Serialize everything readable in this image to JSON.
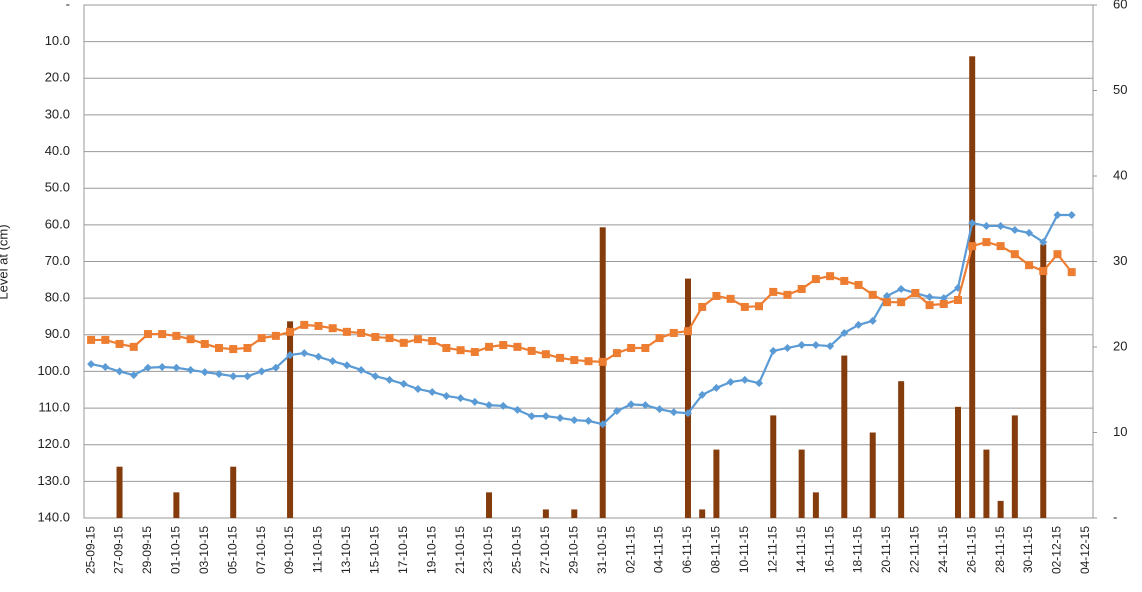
{
  "chart_data": {
    "type": "combo",
    "y_title": "Level at (cm)",
    "categories": [
      "25-09-15",
      null,
      "27-09-15",
      null,
      "29-09-15",
      null,
      "01-10-15",
      null,
      "03-10-15",
      null,
      "05-10-15",
      null,
      "07-10-15",
      null,
      "09-10-15",
      null,
      "11-10-15",
      null,
      "13-10-15",
      null,
      "15-10-15",
      null,
      "17-10-15",
      null,
      "19-10-15",
      null,
      "21-10-15",
      null,
      "23-10-15",
      null,
      "25-10-15",
      null,
      "27-10-15",
      null,
      "29-10-15",
      null,
      "31-10-15",
      null,
      "02-11-15",
      null,
      "04-11-15",
      null,
      "06-11-15",
      null,
      "08-11-15",
      null,
      "10-11-15",
      null,
      "12-11-15",
      null,
      "14-11-15",
      null,
      "16-11-15",
      null,
      "18-11-15",
      null,
      "20-11-15",
      null,
      "22-11-15",
      null,
      "24-11-15",
      null,
      "26-11-15",
      null,
      "28-11-15",
      null,
      "30-11-15",
      null,
      "02-12-15",
      null,
      "04-12-15"
    ],
    "series": [
      {
        "kind": "bar",
        "axis": "y2",
        "color": "#843c0c",
        "values": [
          null,
          null,
          6,
          null,
          null,
          null,
          3,
          null,
          null,
          null,
          6,
          null,
          null,
          null,
          23,
          null,
          null,
          null,
          null,
          null,
          null,
          null,
          null,
          null,
          null,
          null,
          null,
          null,
          3,
          null,
          null,
          null,
          1,
          null,
          1,
          null,
          34,
          null,
          null,
          null,
          null,
          null,
          28,
          1,
          8,
          null,
          null,
          null,
          12,
          null,
          8,
          3,
          null,
          19,
          null,
          10,
          null,
          16,
          null,
          null,
          null,
          13,
          54,
          8,
          2,
          12,
          null,
          32,
          null,
          null,
          null
        ]
      },
      {
        "kind": "line",
        "marker": "diamond",
        "color": "#5b9bd5",
        "values": [
          98.0,
          98.8,
          100.0,
          101.0,
          99.0,
          98.8,
          99.0,
          99.6,
          100.2,
          100.7,
          101.3,
          101.3,
          100.0,
          99.0,
          95.5,
          95.0,
          96.0,
          97.2,
          98.3,
          99.6,
          101.3,
          102.3,
          103.4,
          104.8,
          105.6,
          106.7,
          107.3,
          108.3,
          109.2,
          109.4,
          110.5,
          112.2,
          112.2,
          112.7,
          113.3,
          113.5,
          114.4,
          110.8,
          109.0,
          109.2,
          110.3,
          111.1,
          111.4,
          106.4,
          104.5,
          102.9,
          102.3,
          103.2,
          94.4,
          93.6,
          92.8,
          92.8,
          93.1,
          89.5,
          87.3,
          86.2,
          79.4,
          77.5,
          78.6,
          79.7,
          80.0,
          77.2,
          59.5,
          60.3,
          60.3,
          61.4,
          62.2,
          64.7,
          57.3,
          57.3,
          null
        ]
      },
      {
        "kind": "line",
        "marker": "square",
        "color": "#ed7d31",
        "values": [
          91.4,
          91.4,
          92.5,
          93.3,
          89.8,
          89.8,
          90.3,
          91.2,
          92.5,
          93.6,
          93.9,
          93.6,
          90.9,
          90.3,
          89.2,
          87.3,
          87.6,
          88.2,
          89.2,
          89.5,
          90.6,
          90.9,
          92.2,
          91.2,
          91.7,
          93.6,
          94.2,
          94.7,
          93.3,
          92.8,
          93.3,
          94.4,
          95.3,
          96.3,
          96.9,
          97.2,
          97.4,
          95.0,
          93.6,
          93.6,
          90.9,
          89.5,
          89.0,
          82.4,
          79.4,
          80.2,
          82.4,
          82.2,
          78.3,
          79.1,
          77.5,
          74.8,
          74.0,
          75.3,
          76.4,
          79.1,
          81.1,
          81.1,
          78.6,
          81.9,
          81.6,
          80.5,
          65.8,
          64.7,
          65.8,
          68.0,
          71.0,
          72.6,
          68.0,
          72.9,
          null
        ]
      }
    ],
    "ylim": [
      0,
      140
    ],
    "y_inverted": true,
    "yticks": [
      {
        "value": 0,
        "label": "-"
      },
      {
        "value": 10,
        "label": "10.0"
      },
      {
        "value": 20,
        "label": "20.0"
      },
      {
        "value": 30,
        "label": "30.0"
      },
      {
        "value": 40,
        "label": "40.0"
      },
      {
        "value": 50,
        "label": "50.0"
      },
      {
        "value": 60,
        "label": "60.0"
      },
      {
        "value": 70,
        "label": "70.0"
      },
      {
        "value": 80,
        "label": "80.0"
      },
      {
        "value": 90,
        "label": "90.0"
      },
      {
        "value": 100,
        "label": "100.0"
      },
      {
        "value": 110,
        "label": "110.0"
      },
      {
        "value": 120,
        "label": "120.0"
      },
      {
        "value": 130,
        "label": "130.0"
      },
      {
        "value": 140,
        "label": "140.0"
      }
    ],
    "y2lim": [
      0,
      60
    ],
    "y2ticks": [
      {
        "value": 0,
        "label": "-"
      },
      10,
      20,
      30,
      40,
      50,
      60
    ],
    "grid": true
  }
}
